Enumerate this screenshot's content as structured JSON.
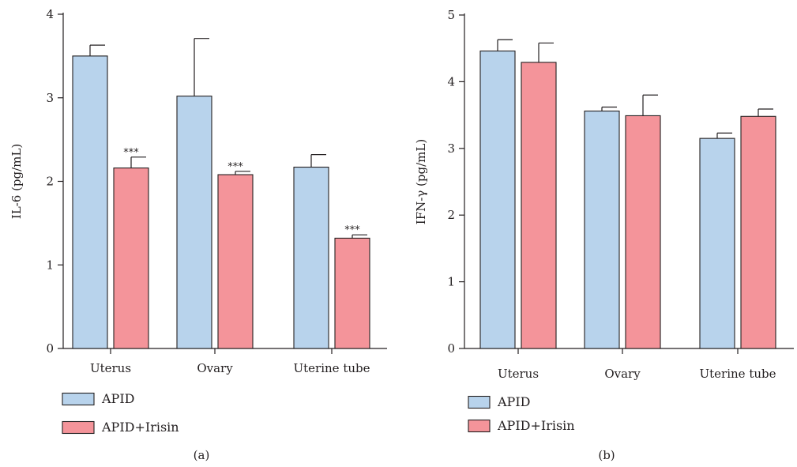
{
  "chart_data": [
    {
      "type": "bar",
      "panel_label": "(a)",
      "ylabel": "IL-6 (pg/mL)",
      "ylim": [
        0,
        4
      ],
      "yticks": [
        "0",
        "1",
        "2",
        "3",
        "4"
      ],
      "categories": [
        "Uterus",
        "Ovary",
        "Uterine tube"
      ],
      "series": [
        {
          "name": "APID",
          "color": "#b8d3ec",
          "values": [
            3.5,
            3.02,
            2.17
          ],
          "errors": [
            0.13,
            0.69,
            0.15
          ],
          "annotations": [
            "",
            "",
            ""
          ]
        },
        {
          "name": "APID+Irisin",
          "color": "#f4949a",
          "values": [
            2.16,
            2.08,
            1.32
          ],
          "errors": [
            0.13,
            0.04,
            0.04
          ],
          "annotations": [
            "***",
            "***",
            "***"
          ]
        }
      ],
      "legend": [
        "APID",
        "APID+Irisin"
      ],
      "legend_position": "below-left"
    },
    {
      "type": "bar",
      "panel_label": "(b)",
      "ylabel": "IFN-γ (pg/mL)",
      "ylim": [
        0,
        5
      ],
      "yticks": [
        "0",
        "1",
        "2",
        "3",
        "4",
        "5"
      ],
      "categories": [
        "Uterus",
        "Ovary",
        "Uterine tube"
      ],
      "series": [
        {
          "name": "APID",
          "color": "#b8d3ec",
          "values": [
            4.46,
            3.56,
            3.15
          ],
          "errors": [
            0.17,
            0.06,
            0.08
          ],
          "annotations": [
            "",
            "",
            ""
          ]
        },
        {
          "name": "APID+Irisin",
          "color": "#f4949a",
          "values": [
            4.29,
            3.49,
            3.48
          ],
          "errors": [
            0.29,
            0.31,
            0.11
          ],
          "annotations": [
            "",
            "",
            ""
          ]
        }
      ],
      "legend": [
        "APID",
        "APID+Irisin"
      ],
      "legend_position": "below-left"
    }
  ]
}
